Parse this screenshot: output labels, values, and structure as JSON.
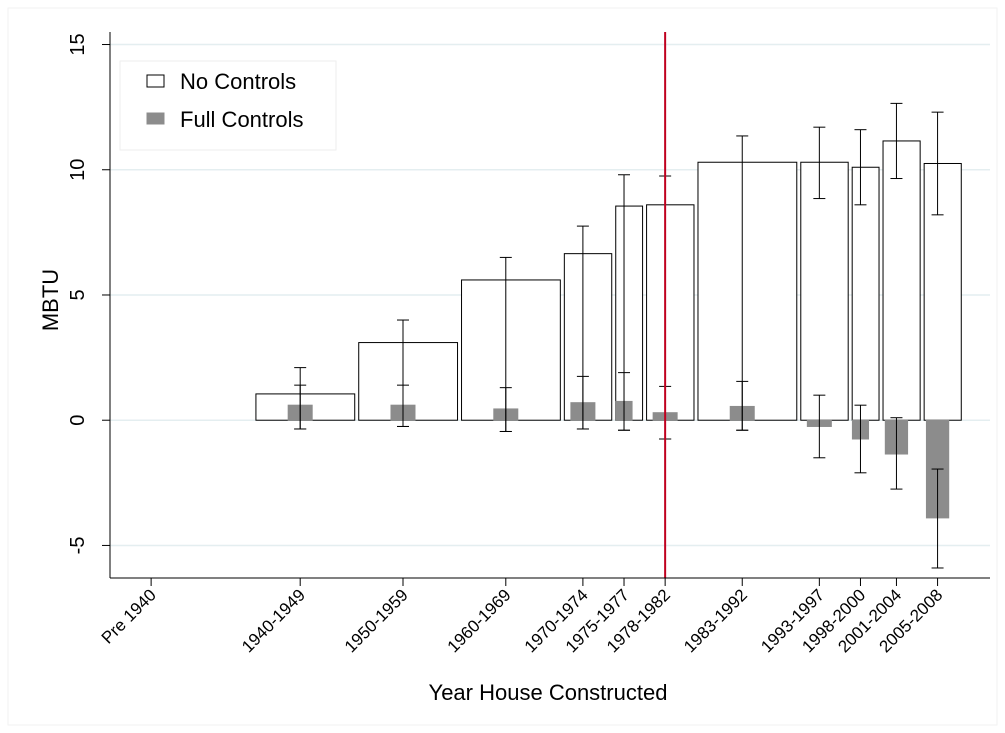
{
  "chart_data": {
    "type": "bar",
    "xlabel": "Year House Constructed",
    "ylabel": "MBTU",
    "ylim": [
      -6.3,
      15.5
    ],
    "yticks": [
      -5,
      0,
      5,
      10,
      15
    ],
    "ytick_labels": [
      "-5",
      "0",
      "5",
      "10",
      "15"
    ],
    "grid": "horizontal",
    "legend_position": "top-left",
    "vertical_reference_line": {
      "x": 1980,
      "color": "#c0001f"
    },
    "colors": {
      "no_controls_fill": "#ffffff",
      "full_controls_fill": "#8c8c8c",
      "gridline": "#e4eef0",
      "reference_line": "#c0001f"
    },
    "categories": [
      {
        "label": "Pre 1940",
        "x": 1930,
        "x_start": null,
        "x_end": null
      },
      {
        "label": "1940-1949",
        "x": 1944.5,
        "x_start": 1940,
        "x_end": 1950
      },
      {
        "label": "1950-1959",
        "x": 1954.5,
        "x_start": 1950,
        "x_end": 1960
      },
      {
        "label": "1960-1969",
        "x": 1964.5,
        "x_start": 1960,
        "x_end": 1970
      },
      {
        "label": "1970-1974",
        "x": 1972,
        "x_start": 1970,
        "x_end": 1975
      },
      {
        "label": "1975-1977",
        "x": 1976,
        "x_start": 1975,
        "x_end": 1978
      },
      {
        "label": "1978-1982",
        "x": 1980,
        "x_start": 1978,
        "x_end": 1983
      },
      {
        "label": "1983-1992",
        "x": 1987.5,
        "x_start": 1983,
        "x_end": 1993
      },
      {
        "label": "1993-1997",
        "x": 1995,
        "x_start": 1993,
        "x_end": 1998
      },
      {
        "label": "1998-2000",
        "x": 1999,
        "x_start": 1998,
        "x_end": 2001
      },
      {
        "label": "2001-2004",
        "x": 2002.5,
        "x_start": 2001,
        "x_end": 2005
      },
      {
        "label": "2005-2008",
        "x": 2006.5,
        "x_start": 2005,
        "x_end": 2009
      }
    ],
    "series": [
      {
        "name": "No Controls",
        "values": [
          null,
          1.05,
          3.1,
          5.6,
          6.65,
          8.55,
          8.6,
          10.3,
          10.3,
          10.1,
          11.15,
          10.25
        ],
        "ci_low": [
          null,
          -0.35,
          -0.25,
          -0.45,
          -0.35,
          -0.4,
          -0.75,
          -0.4,
          8.85,
          8.6,
          9.65,
          8.2
        ],
        "ci_high": [
          null,
          2.1,
          4.0,
          6.5,
          7.75,
          9.8,
          9.75,
          11.35,
          11.7,
          11.6,
          12.65,
          12.3
        ]
      },
      {
        "name": "Full Controls",
        "values": [
          null,
          0.6,
          0.6,
          0.45,
          0.7,
          0.75,
          0.3,
          0.55,
          -0.25,
          -0.75,
          -1.35,
          -3.9
        ],
        "ci_low": [
          null,
          -0.35,
          -0.25,
          -0.45,
          -0.35,
          -0.4,
          -0.75,
          -0.4,
          -1.5,
          -2.1,
          -2.75,
          -5.9
        ],
        "ci_high": [
          null,
          1.4,
          1.4,
          1.3,
          1.75,
          1.9,
          1.35,
          1.55,
          1.0,
          0.6,
          0.1,
          -1.95
        ]
      }
    ]
  }
}
